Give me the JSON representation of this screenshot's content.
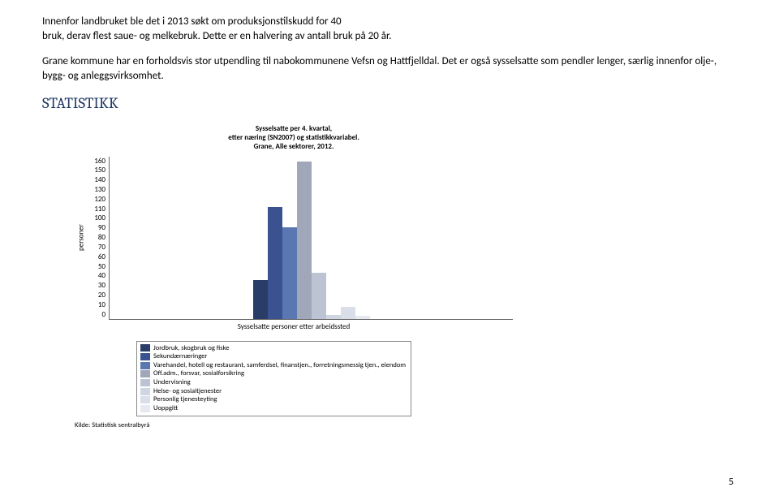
{
  "paragraphs": {
    "p1a": "Innenfor landbruket ble det i 2013 søkt om produksjonstilskudd for 40",
    "p1b": "bruk, derav flest saue- og melkebruk. Dette er en halvering av antall bruk på 20 år.",
    "p2": "Grane kommune har en forholdsvis stor utpendling til nabokommunene Vefsn og Hattfjelldal. Det er også sysselsatte som pendler lenger, særlig innenfor olje-, bygg- og anleggsvirksomhet."
  },
  "heading": "STATISTIKK",
  "chart": {
    "type": "bar",
    "title_line1": "Sysselsatte per 4. kvartal,",
    "title_line2": "etter næring (SN2007) og statistikkvariabel.",
    "title_line3": "Grane, Alle sektorer, 2012.",
    "y_label": "personer",
    "x_label": "Sysselsatte personer etter arbeidssted",
    "ylim_max": 160,
    "y_ticks": [
      160,
      150,
      140,
      130,
      120,
      110,
      100,
      90,
      80,
      70,
      60,
      50,
      40,
      30,
      20,
      10,
      0
    ],
    "series": [
      {
        "name": "Jordbruk, skogbruk og fiske",
        "value": 38,
        "color": "#2a3d66"
      },
      {
        "name": "Sekundærnæringer",
        "value": 110,
        "color": "#3a5390"
      },
      {
        "name": "Varehandel, hotell og restaurant, samferdsel, finanstjen., forretningsmessig tjen., eiendom",
        "value": 90,
        "color": "#5a77b2"
      },
      {
        "name": "Off.adm., forsvar, sosialforsikring",
        "value": 155,
        "color": "#9fa7b8"
      },
      {
        "name": "Undervisning",
        "value": 45,
        "color": "#bcc4d4"
      },
      {
        "name": "Helse- og sosialtjenester",
        "value": 4,
        "color": "#cfd6e2"
      },
      {
        "name": "Personlig tjenesteyting",
        "value": 12,
        "color": "#d9dee8"
      },
      {
        "name": "Uoppgitt",
        "value": 3,
        "color": "#e6e9f0"
      }
    ],
    "source": "Kilde: Statistisk sentralbyrå"
  },
  "page_number": "5"
}
